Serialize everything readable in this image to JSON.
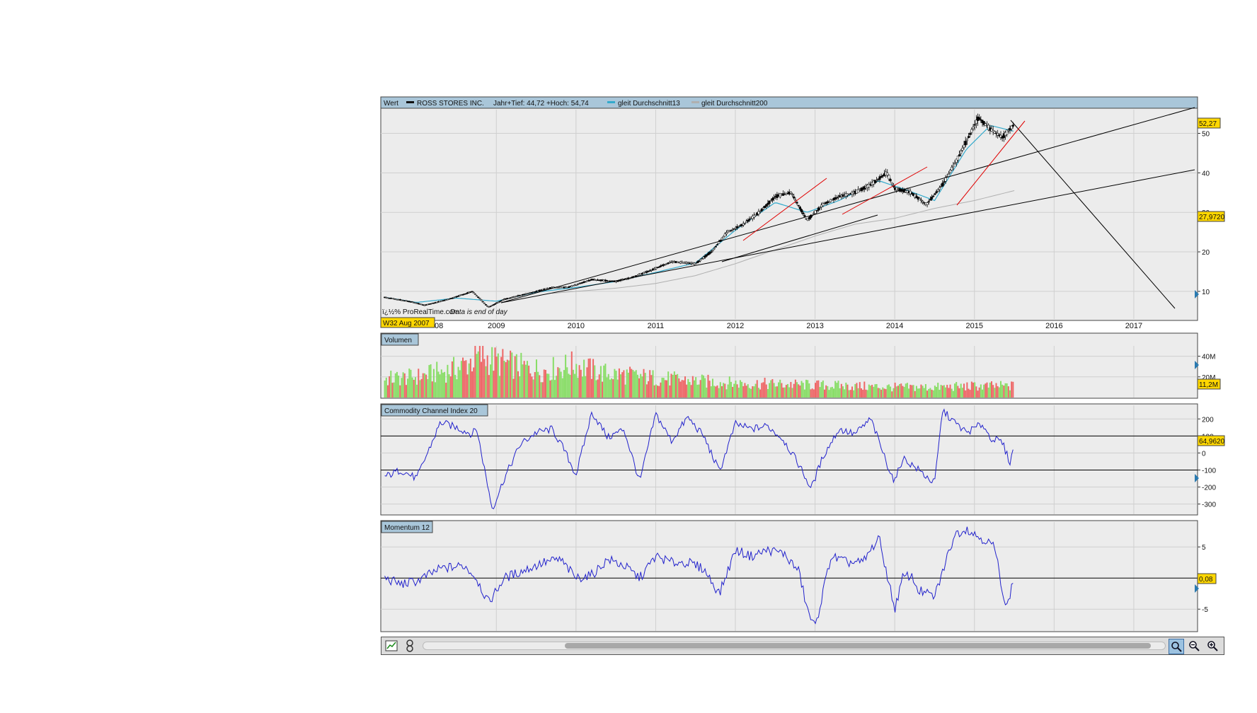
{
  "colors": {
    "panel_bg": "#ececec",
    "grid": "#cfcfcf",
    "header_blue": "#a9c6d9",
    "label_yellow": "#ffd700",
    "candle_up": "#ffffff",
    "candle_down": "#000000",
    "ma13": "#33aacc",
    "ma200": "#b0b0b0",
    "trend_black": "#000000",
    "trend_red": "#e00000",
    "volume_up": "#88dd66",
    "volume_down": "#ee6666",
    "indicator_line": "#2222cc"
  },
  "header": {
    "value_label": "Wert",
    "instrument": "ROSS STORES INC.",
    "stats": "Jahr+Tief: 44,72 +Hoch: 54,74",
    "ma13_label": "gleit Durchschnitt13",
    "ma200_label": "gleit Durchschnitt200"
  },
  "price_panel": {
    "source_text": "ï¿½% ProRealTime.com",
    "data_note": "Data is end of day",
    "cursor_label": "W32 Aug 2007",
    "last_price_label": "52,27",
    "trend_label": "27,9720",
    "first_partial_tick": "08"
  },
  "volume_panel": {
    "title": "Volumen",
    "last_label": "11,2M"
  },
  "cci_panel": {
    "title": "Commodity Channel Index 20",
    "last_label": "64,9620"
  },
  "momentum_panel": {
    "title": "Momentum 12",
    "last_label": "0,08"
  },
  "chart_data": [
    {
      "type": "line",
      "title": "ROSS STORES INC.",
      "x_axis_ticks": [
        "2009",
        "2010",
        "2011",
        "2012",
        "2013",
        "2014",
        "2015",
        "2016",
        "2017"
      ],
      "y_ticks": [
        "10",
        "20",
        "30",
        "40",
        "50"
      ],
      "ylim": [
        3,
        56
      ],
      "grid": true,
      "series": [
        {
          "name": "ROSS STORES INC.",
          "x": [
            2007.6,
            2007.9,
            2008.1,
            2008.4,
            2008.7,
            2008.9,
            2009.1,
            2009.4,
            2009.7,
            2009.9,
            2010.2,
            2010.5,
            2010.7,
            2010.9,
            2011.2,
            2011.5,
            2011.7,
            2011.9,
            2012.1,
            2012.3,
            2012.5,
            2012.7,
            2012.9,
            2013.1,
            2013.3,
            2013.5,
            2013.7,
            2013.9,
            2014.0,
            2014.2,
            2014.4,
            2014.6,
            2014.8,
            2014.9,
            2015.05,
            2015.2,
            2015.35,
            2015.5
          ],
          "values": [
            8.5,
            7.5,
            6.5,
            8.0,
            10.0,
            6.0,
            8.0,
            9.5,
            11.0,
            11.0,
            13.0,
            12.5,
            13.5,
            15.0,
            17.5,
            17.0,
            20.0,
            25.0,
            27.0,
            30.0,
            34.0,
            35.0,
            28.0,
            32.0,
            34.0,
            35.0,
            37.0,
            40.0,
            36.0,
            35.0,
            32.0,
            37.0,
            44.0,
            48.0,
            54.0,
            51.0,
            49.0,
            52.27
          ]
        },
        {
          "name": "gleit Durchschnitt13",
          "x": [
            2007.6,
            2008.0,
            2008.5,
            2009.0,
            2009.5,
            2010.0,
            2010.5,
            2011.0,
            2011.5,
            2012.0,
            2012.5,
            2012.9,
            2013.3,
            2013.8,
            2014.1,
            2014.5,
            2014.9,
            2015.2,
            2015.5
          ],
          "values": [
            8.5,
            7.2,
            8.3,
            7.5,
            9.8,
            11.0,
            12.5,
            14.8,
            17.2,
            25.5,
            32.5,
            30.0,
            33.0,
            38.0,
            36.0,
            33.0,
            46.0,
            52.0,
            50.5
          ]
        },
        {
          "name": "gleit Durchschnitt200",
          "x": [
            2009.7,
            2010.0,
            2010.5,
            2011.0,
            2011.5,
            2012.0,
            2012.5,
            2013.0,
            2013.5,
            2014.0,
            2014.5,
            2015.0,
            2015.5
          ],
          "values": [
            9.5,
            10.0,
            10.8,
            12.0,
            14.0,
            17.0,
            20.5,
            24.0,
            27.0,
            28.5,
            31.0,
            33.0,
            35.5
          ]
        }
      ]
    },
    {
      "type": "bar",
      "title": "Volumen",
      "y_ticks": [
        "20M",
        "40M"
      ],
      "ylim": [
        0,
        50
      ],
      "x": [
        2007.6,
        2008.0,
        2008.5,
        2008.8,
        2009.0,
        2009.3,
        2009.6,
        2010.0,
        2010.3,
        2010.6,
        2011.0,
        2011.5,
        2012.0,
        2012.5,
        2013.0,
        2013.5,
        2014.0,
        2014.5,
        2015.0,
        2015.5
      ],
      "values": [
        18,
        20,
        28,
        40,
        35,
        30,
        26,
        32,
        24,
        22,
        19,
        16,
        14,
        13,
        12,
        11,
        10,
        10,
        11,
        11.2
      ]
    },
    {
      "type": "line",
      "title": "Commodity Channel Index 20",
      "y_ticks": [
        "200",
        "100",
        "0",
        "-100",
        "-200",
        "-300"
      ],
      "ylim": [
        -360,
        280
      ],
      "series": [
        {
          "name": "Commodity Channel Index 20",
          "x": [
            2007.6,
            2007.8,
            2008.0,
            2008.1,
            2008.3,
            2008.5,
            2008.7,
            2008.75,
            2008.95,
            2009.1,
            2009.3,
            2009.5,
            2009.7,
            2009.85,
            2010.0,
            2010.2,
            2010.4,
            2010.6,
            2010.8,
            2011.0,
            2011.2,
            2011.4,
            2011.6,
            2011.8,
            2012.0,
            2012.2,
            2012.4,
            2012.6,
            2012.8,
            2012.95,
            2013.1,
            2013.3,
            2013.5,
            2013.7,
            2013.9,
            2014.0,
            2014.1,
            2014.3,
            2014.5,
            2014.6,
            2014.75,
            2014.9,
            2015.1,
            2015.2,
            2015.35,
            2015.45,
            2015.5
          ],
          "values": [
            -140,
            -100,
            -150,
            -40,
            180,
            150,
            110,
            150,
            -330,
            -150,
            50,
            120,
            140,
            20,
            -130,
            240,
            90,
            140,
            -170,
            230,
            70,
            210,
            100,
            -110,
            170,
            140,
            160,
            80,
            -70,
            -210,
            -20,
            140,
            110,
            200,
            -60,
            -170,
            -30,
            -100,
            -180,
            250,
            180,
            120,
            170,
            90,
            60,
            -60,
            64.96
          ]
        }
      ]
    },
    {
      "type": "line",
      "title": "Momentum 12",
      "y_ticks": [
        "5",
        "-5"
      ],
      "ylim": [
        -8.5,
        9
      ],
      "series": [
        {
          "name": "Momentum 12",
          "x": [
            2007.6,
            2007.8,
            2008.0,
            2008.3,
            2008.6,
            2008.75,
            2008.9,
            2009.1,
            2009.4,
            2009.6,
            2009.8,
            2010.0,
            2010.2,
            2010.4,
            2010.6,
            2010.8,
            2011.0,
            2011.2,
            2011.4,
            2011.6,
            2011.8,
            2012.0,
            2012.2,
            2012.4,
            2012.6,
            2012.8,
            2012.9,
            2013.0,
            2013.2,
            2013.4,
            2013.6,
            2013.8,
            2014.0,
            2014.1,
            2014.2,
            2014.3,
            2014.5,
            2014.6,
            2014.75,
            2014.9,
            2015.0,
            2015.15,
            2015.25,
            2015.4,
            2015.5
          ],
          "values": [
            0,
            -1,
            -0.5,
            1.5,
            2,
            0,
            -4,
            0,
            1.5,
            2.5,
            3,
            0,
            0.5,
            3,
            2,
            0,
            3.5,
            2.5,
            2.5,
            1.5,
            -2.5,
            4.5,
            3.5,
            4.5,
            4,
            1,
            -5,
            -8,
            3.5,
            2.5,
            2.5,
            6.5,
            -5,
            0,
            0.5,
            -2,
            -3,
            1,
            7,
            8,
            7,
            6,
            5,
            -5,
            0.08
          ]
        }
      ]
    }
  ]
}
